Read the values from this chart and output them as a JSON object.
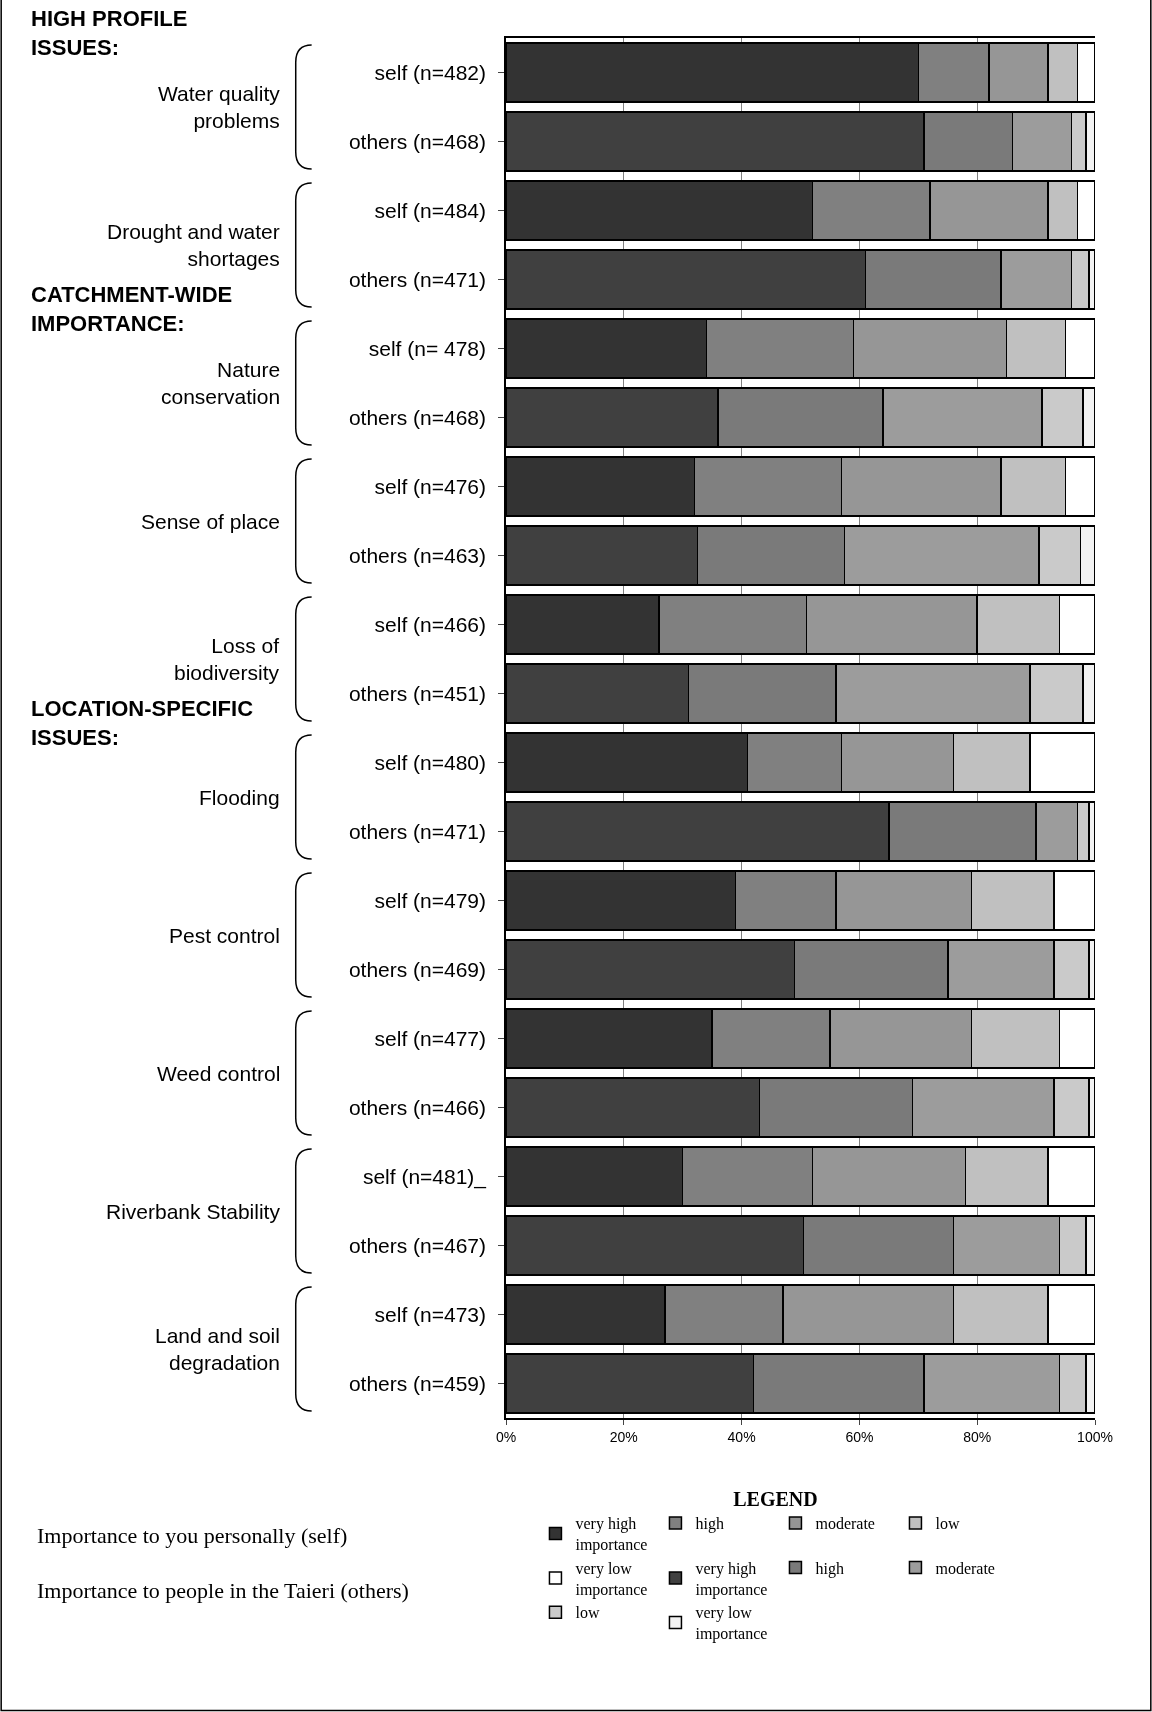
{
  "chart_data": {
    "type": "bar",
    "orientation": "horizontal",
    "stacked": true,
    "categories": [
      "self (n=482)",
      "others (n=468)",
      "self (n=484)",
      "others (n=471)",
      "self (n= 478)",
      "others (n=468)",
      "self (n=476)",
      "others (n=463)",
      "self (n=466)",
      "others (n=451)",
      "self (n=480)",
      "others (n=471)",
      "self (n=479)",
      "others (n=469)",
      "self (n=477)",
      "others (n=466)",
      "self (n=481)_",
      "others (n=467)",
      "self (n=473)",
      "others (n=459)"
    ],
    "series": [
      {
        "name": "very high importance",
        "color": "#333333",
        "values": [
          70,
          null,
          52,
          null,
          34,
          null,
          32,
          null,
          26,
          null,
          41,
          null,
          39,
          null,
          35,
          null,
          30,
          null,
          27,
          null
        ]
      },
      {
        "name": "high",
        "color": "#808080",
        "values": [
          12,
          null,
          20,
          null,
          25,
          null,
          25,
          null,
          25,
          null,
          16,
          null,
          17,
          null,
          20,
          null,
          22,
          null,
          20,
          null
        ]
      },
      {
        "name": "moderate",
        "color": "#969696",
        "values": [
          10,
          null,
          20,
          null,
          26,
          null,
          27,
          null,
          29,
          null,
          19,
          null,
          23,
          null,
          24,
          null,
          26,
          null,
          29,
          null
        ]
      },
      {
        "name": "low",
        "color": "#c0c0c0",
        "values": [
          5,
          null,
          5,
          null,
          10,
          null,
          11,
          null,
          14,
          null,
          13,
          null,
          14,
          null,
          15,
          null,
          14,
          null,
          16,
          null
        ]
      },
      {
        "name": "very low importance",
        "color": "#ffffff",
        "values": [
          3,
          null,
          3,
          null,
          5,
          null,
          5,
          null,
          6,
          null,
          11,
          null,
          7,
          null,
          6,
          null,
          8,
          null,
          8,
          null
        ]
      },
      {
        "name": "very high importance",
        "color": "#404040",
        "values": [
          null,
          71,
          null,
          61,
          null,
          36,
          null,
          32.5,
          null,
          31,
          null,
          65,
          null,
          49,
          null,
          43,
          null,
          50.5,
          null,
          42
        ]
      },
      {
        "name": "high",
        "color": "#7a7a7a",
        "values": [
          null,
          15,
          null,
          23,
          null,
          28,
          null,
          25,
          null,
          25,
          null,
          25,
          null,
          26,
          null,
          26,
          null,
          25.5,
          null,
          29
        ]
      },
      {
        "name": "moderate",
        "color": "#9c9c9c",
        "values": [
          null,
          10,
          null,
          12,
          null,
          27,
          null,
          33,
          null,
          33,
          null,
          7,
          null,
          18,
          null,
          24,
          null,
          18,
          null,
          23
        ]
      },
      {
        "name": "low",
        "color": "#cacaca",
        "values": [
          null,
          2.5,
          null,
          3,
          null,
          7,
          null,
          7,
          null,
          9,
          null,
          2,
          null,
          6,
          null,
          6,
          null,
          4.5,
          null,
          4.5
        ]
      },
      {
        "name": "very low importance",
        "color": "#f2f2f2",
        "values": [
          null,
          1.5,
          null,
          1,
          null,
          2,
          null,
          2.5,
          null,
          2,
          null,
          1,
          null,
          1,
          null,
          1,
          null,
          1.5,
          null,
          1.5
        ]
      }
    ],
    "xlim": [
      0,
      100
    ],
    "xticks": [
      {
        "value": 0,
        "label": "0%"
      },
      {
        "value": 20,
        "label": "20%"
      },
      {
        "value": 40,
        "label": "40%"
      },
      {
        "value": 60,
        "label": "60%"
      },
      {
        "value": 80,
        "label": "80%"
      },
      {
        "value": 100,
        "label": "100%"
      }
    ],
    "grid": "x",
    "legend": "bottom",
    "legend_title": "LEGEND",
    "annotations": [
      "HIGH PROFILE\nISSUES:",
      "CATCHMENT-WIDE\nIMPORTANCE:",
      "LOCATION-SPECIFIC\nISSUES:",
      "Water quality\nproblems",
      "Drought and water\nshortages",
      "Nature\nconservation",
      "Sense of place",
      "Loss of\nbiodiversity",
      "Flooding",
      "Pest control",
      "Weed control",
      "Riverbank Stability",
      "Land and soil\ndegradation",
      "Importance to you personally (self)",
      "Importance to people in the Taieri (others)"
    ]
  }
}
